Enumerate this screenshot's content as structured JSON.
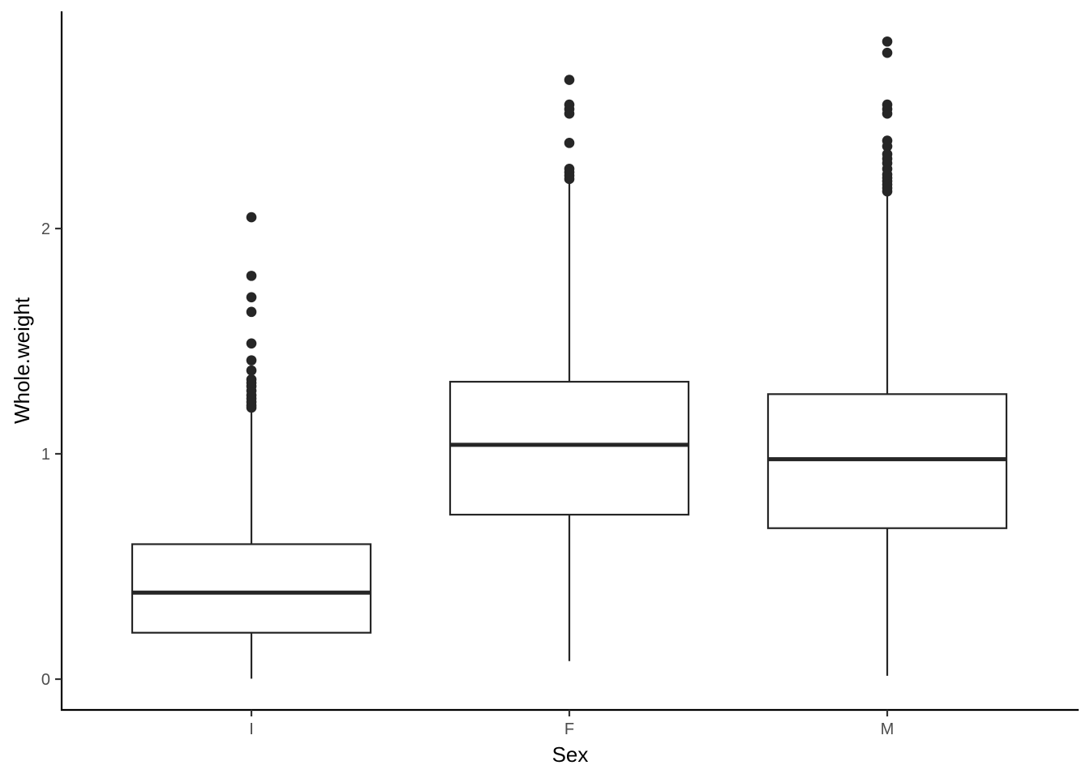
{
  "chart_data": {
    "type": "boxplot",
    "xlabel": "Sex",
    "ylabel": "Whole.weight",
    "ylim": [
      -0.14,
      2.95
    ],
    "yticks": [
      0,
      1,
      2
    ],
    "grid": false,
    "categories": [
      "I",
      "F",
      "M"
    ],
    "boxes": [
      {
        "category": "I",
        "whisker_low": 0.002,
        "q1": 0.206,
        "median": 0.384,
        "q3": 0.599,
        "whisker_high": 1.19,
        "outliers": [
          1.205,
          1.215,
          1.23,
          1.245,
          1.26,
          1.28,
          1.3,
          1.315,
          1.33,
          1.37,
          1.415,
          1.49,
          1.63,
          1.695,
          1.79,
          2.05
        ]
      },
      {
        "category": "F",
        "whisker_low": 0.08,
        "q1": 0.73,
        "median": 1.04,
        "q3": 1.32,
        "whisker_high": 2.2,
        "outliers": [
          2.22,
          2.235,
          2.25,
          2.265,
          2.38,
          2.51,
          2.53,
          2.55,
          2.66
        ]
      },
      {
        "category": "M",
        "whisker_low": 0.015,
        "q1": 0.67,
        "median": 0.976,
        "q3": 1.265,
        "whisker_high": 2.15,
        "outliers": [
          2.165,
          2.18,
          2.195,
          2.21,
          2.225,
          2.24,
          2.265,
          2.29,
          2.31,
          2.33,
          2.365,
          2.39,
          2.51,
          2.53,
          2.55,
          2.78,
          2.83
        ]
      }
    ],
    "colors": {
      "stroke": "#262626",
      "fill": "#ffffff",
      "axis": "#000000"
    }
  }
}
